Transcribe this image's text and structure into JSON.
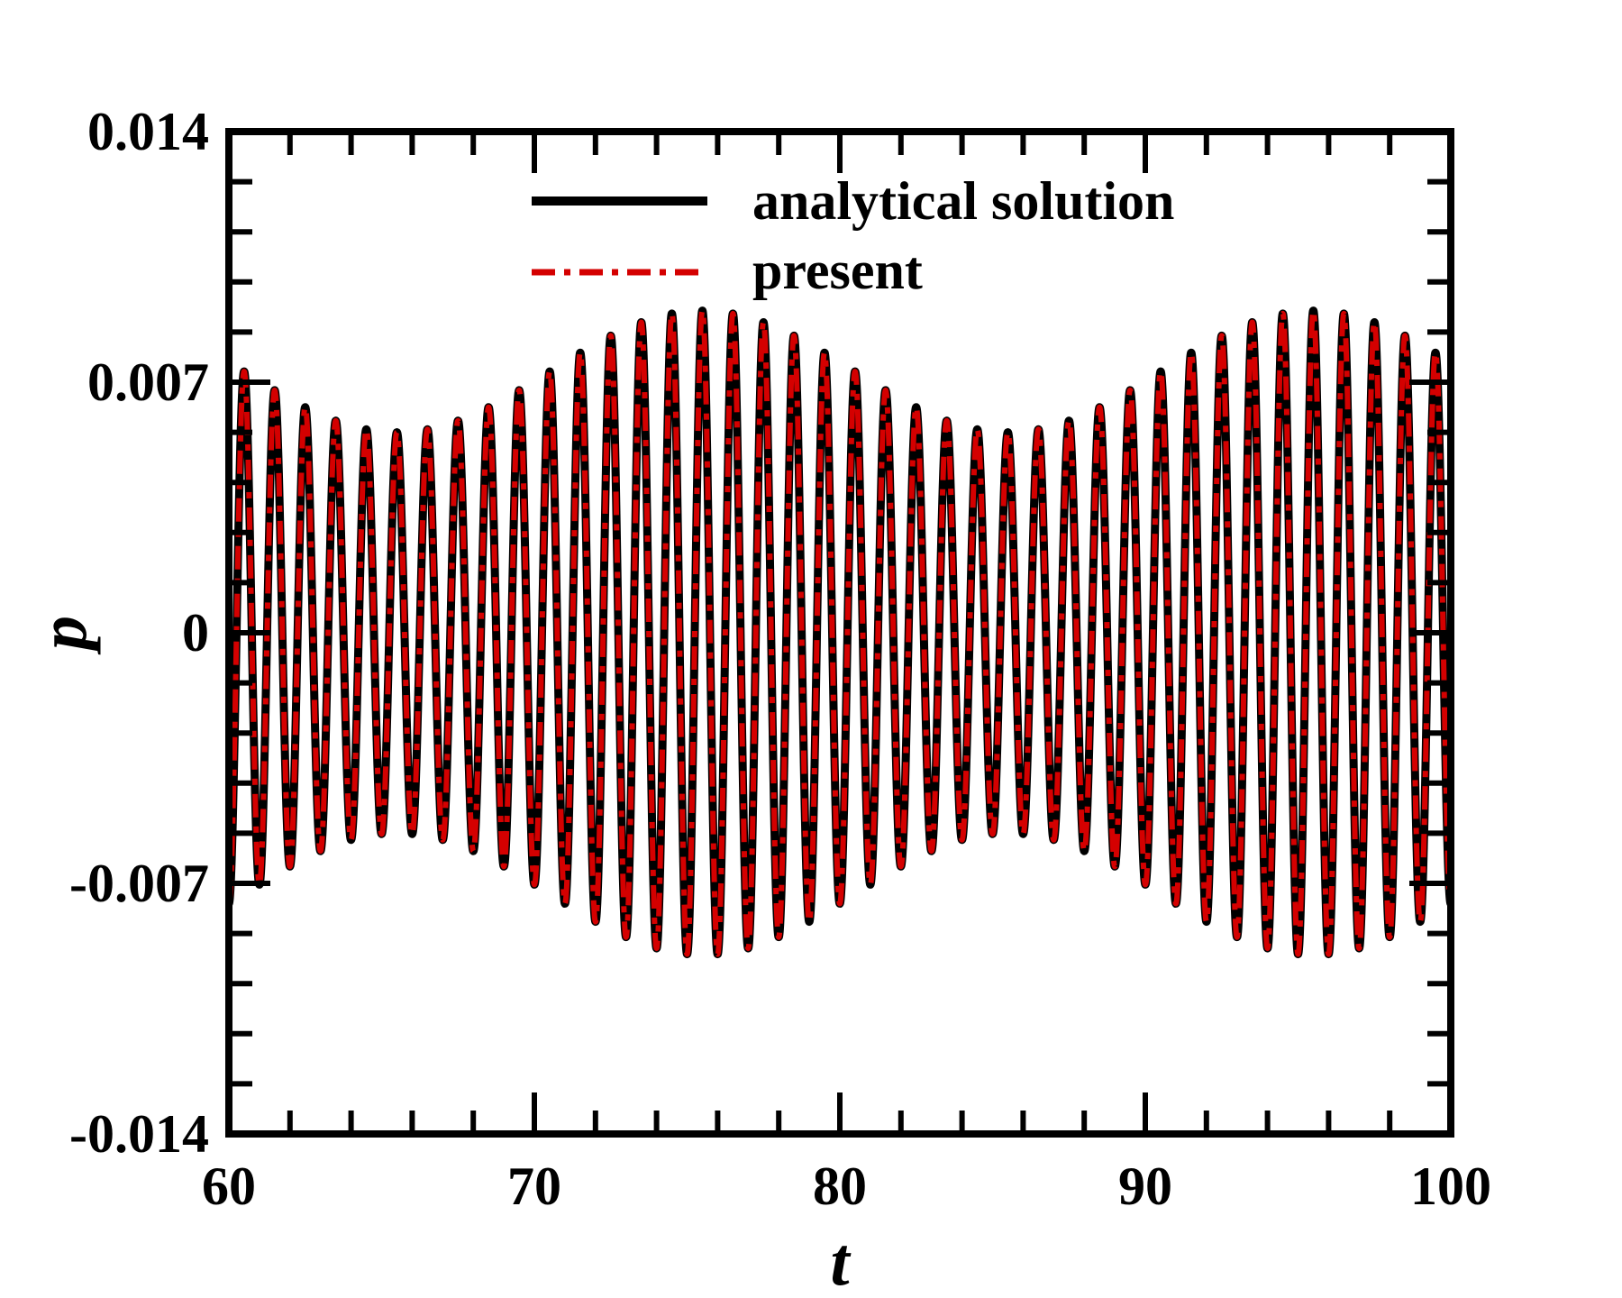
{
  "chart_data": {
    "type": "line",
    "title": "",
    "xlabel": "t",
    "ylabel": "p",
    "xlim": [
      60,
      100
    ],
    "ylim": [
      -0.014,
      0.014
    ],
    "xticks": [
      60,
      70,
      80,
      90,
      100
    ],
    "xtick_labels": [
      "60",
      "70",
      "80",
      "90",
      "100"
    ],
    "yticks": [
      0.014,
      0.007,
      0,
      -0.007,
      -0.014
    ],
    "ytick_labels": [
      "0.014",
      "0.007",
      "0",
      "-0.007",
      "-0.014"
    ],
    "grid": false,
    "legend_position": "top-center",
    "series": [
      {
        "name": "analytical solution",
        "color": "#000000",
        "line_style": "solid",
        "signal": {
          "carrier_period": 1.0,
          "mean_amplitude": 0.0073,
          "modulation_amplitude": 0.0017,
          "modulation_period": 20,
          "amplitude_peak_t": 75.5,
          "amplitude_min_t": 65.5
        }
      },
      {
        "name": "present",
        "color": "#d40000",
        "line_style": "dash-dot",
        "signal": {
          "carrier_period": 1.0,
          "mean_amplitude": 0.0073,
          "modulation_amplitude": 0.0017,
          "modulation_period": 20,
          "amplitude_peak_t": 75.5,
          "amplitude_min_t": 65.5
        }
      }
    ]
  }
}
